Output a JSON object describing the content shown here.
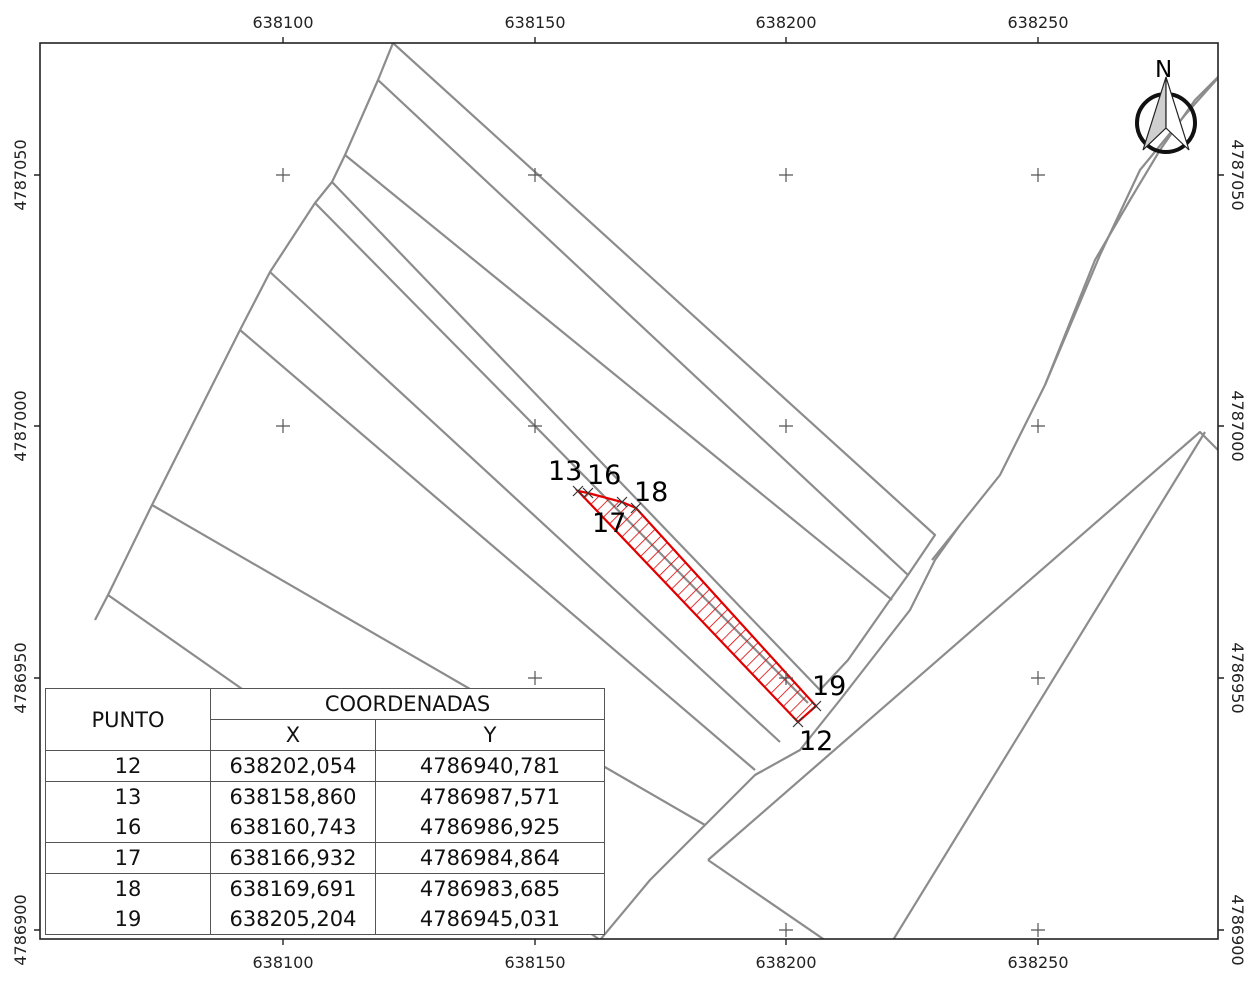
{
  "map": {
    "x_ticks": [
      "638100",
      "638150",
      "638200",
      "638250"
    ],
    "y_ticks": [
      "4787050",
      "4787000",
      "4786950",
      "4786900"
    ],
    "north_label": "N",
    "point_labels": [
      "13",
      "16",
      "18",
      "17",
      "19",
      "12"
    ],
    "highlight_color": "#e00000",
    "parcel_line_color": "#8c8c8c"
  },
  "table": {
    "header_punto": "PUNTO",
    "header_coordenadas": "COORDENADAS",
    "header_x": "X",
    "header_y": "Y",
    "rows": [
      {
        "punto": "12",
        "x": "638202,054",
        "y": "4786940,781"
      },
      {
        "punto": "13",
        "x": "638158,860",
        "y": "4786987,571"
      },
      {
        "punto": "16",
        "x": "638160,743",
        "y": "4786986,925"
      },
      {
        "punto": "17",
        "x": "638166,932",
        "y": "4786984,864"
      },
      {
        "punto": "18",
        "x": "638169,691",
        "y": "4786983,685"
      },
      {
        "punto": "19",
        "x": "638205,204",
        "y": "4786945,031"
      }
    ]
  }
}
